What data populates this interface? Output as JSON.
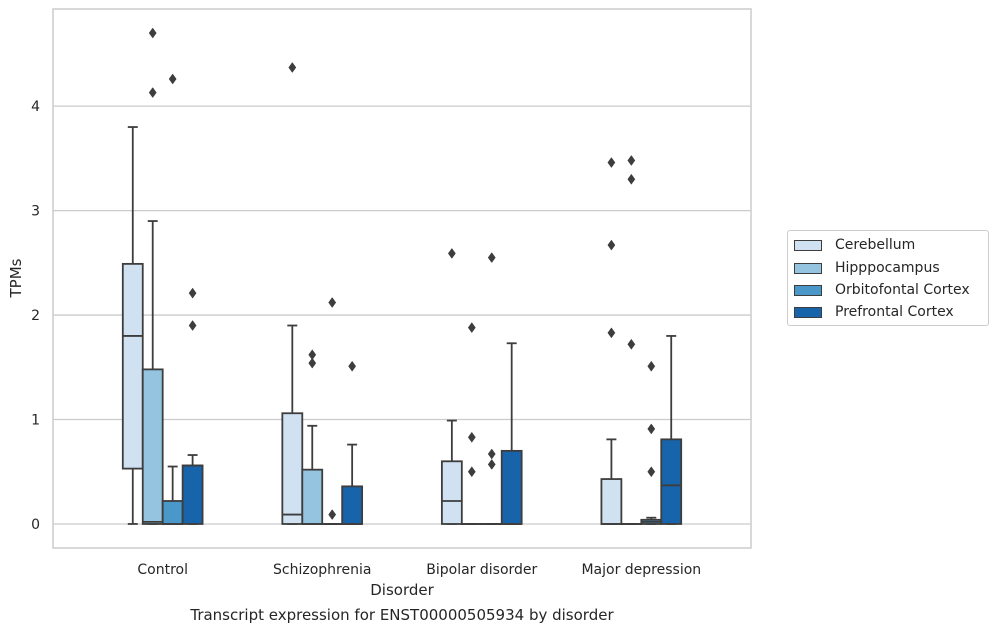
{
  "chart_data": {
    "type": "box",
    "title": "",
    "caption": "Transcript expression for ENST00000505934 by disorder",
    "xlabel": "Disorder",
    "ylabel": "TPMs",
    "ylim": [
      -0.23,
      4.93
    ],
    "yticks": [
      0,
      1,
      2,
      3,
      4
    ],
    "grid": "horizontal",
    "legend_position": "right",
    "categories": [
      "Control",
      "Schizophrenia",
      "Bipolar disorder",
      "Major depression"
    ],
    "series": [
      {
        "name": "Cerebellum",
        "color": "#d0e1f2",
        "boxes": [
          {
            "min": 0,
            "q1": 0.53,
            "median": 1.8,
            "q3": 2.49,
            "max": 3.8,
            "outliers": []
          },
          {
            "min": 0,
            "q1": 0,
            "median": 0.09,
            "q3": 1.06,
            "max": 1.9,
            "outliers": [
              4.37
            ]
          },
          {
            "min": 0,
            "q1": 0,
            "median": 0.22,
            "q3": 0.6,
            "max": 0.99,
            "outliers": [
              2.59
            ]
          },
          {
            "min": 0,
            "q1": 0,
            "median": 0,
            "q3": 0.43,
            "max": 0.81,
            "outliers": [
              1.83,
              2.67,
              3.46
            ]
          }
        ]
      },
      {
        "name": "Hipppocampus",
        "color": "#94c4df",
        "boxes": [
          {
            "min": 0,
            "q1": 0,
            "median": 0.02,
            "q3": 1.48,
            "max": 2.9,
            "outliers": [
              4.13,
              4.7
            ]
          },
          {
            "min": 0,
            "q1": 0,
            "median": 0,
            "q3": 0.52,
            "max": 0.94,
            "outliers": [
              1.54,
              1.62
            ]
          },
          {
            "min": 0,
            "q1": 0,
            "median": 0,
            "q3": 0,
            "max": 0,
            "outliers": [
              0.5,
              0.83,
              1.88
            ]
          },
          {
            "min": 0,
            "q1": 0,
            "median": 0,
            "q3": 0,
            "max": 0,
            "outliers": [
              1.72,
              3.3,
              3.48
            ]
          }
        ]
      },
      {
        "name": "Orbitofontal Cortex",
        "color": "#4a98c9",
        "boxes": [
          {
            "min": 0,
            "q1": 0,
            "median": 0,
            "q3": 0.22,
            "max": 0.55,
            "outliers": [
              4.26
            ]
          },
          {
            "min": 0,
            "q1": 0,
            "median": 0,
            "q3": 0,
            "max": 0,
            "outliers": [
              0.09,
              2.12
            ]
          },
          {
            "min": 0,
            "q1": 0,
            "median": 0,
            "q3": 0,
            "max": 0,
            "outliers": [
              0.57,
              0.67,
              2.55
            ]
          },
          {
            "min": 0,
            "q1": 0,
            "median": 0.02,
            "q3": 0.04,
            "max": 0.06,
            "outliers": [
              0.5,
              0.91,
              1.51
            ]
          }
        ]
      },
      {
        "name": "Prefrontal Cortex",
        "color": "#1764ab",
        "boxes": [
          {
            "min": 0,
            "q1": 0,
            "median": 0.56,
            "q3": 0.56,
            "max": 0.66,
            "outliers": [
              1.9,
              2.21
            ]
          },
          {
            "min": 0,
            "q1": 0,
            "median": 0,
            "q3": 0.36,
            "max": 0.76,
            "outliers": [
              1.51
            ]
          },
          {
            "min": 0,
            "q1": 0,
            "median": 0,
            "q3": 0.7,
            "max": 1.73,
            "outliers": []
          },
          {
            "min": 0,
            "q1": 0,
            "median": 0.37,
            "q3": 0.81,
            "max": 1.8,
            "outliers": []
          }
        ]
      }
    ]
  }
}
